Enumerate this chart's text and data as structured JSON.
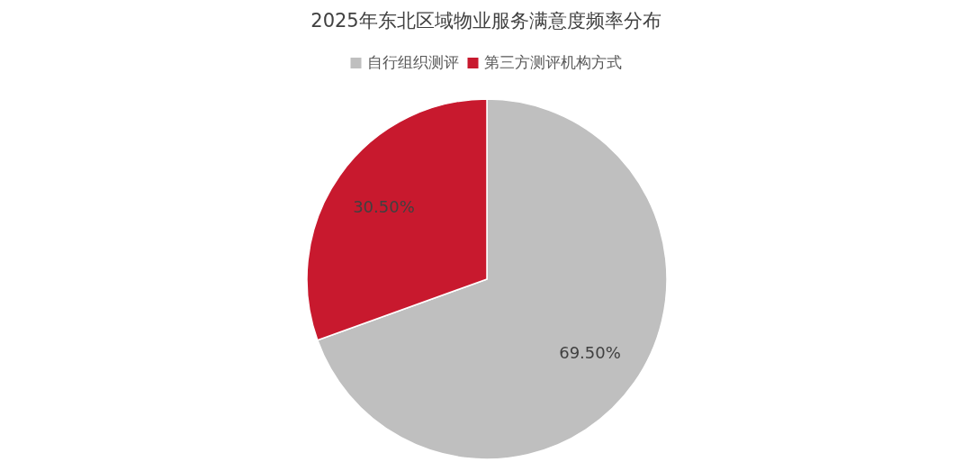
{
  "chart_data": {
    "type": "pie",
    "title": "2025年东北区域物业服务满意度频率分布",
    "categories": [
      "自行组织测评",
      "第三方测评机构方式"
    ],
    "values": [
      69.5,
      30.5
    ],
    "colors": [
      "#bfbfbf",
      "#c8192e"
    ],
    "value_labels": [
      "69.50%",
      "30.50%"
    ],
    "legend": "top"
  }
}
